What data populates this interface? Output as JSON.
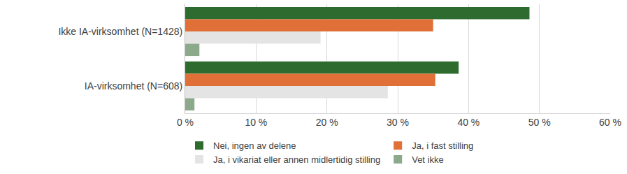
{
  "chart_data": {
    "type": "bar",
    "orientation": "horizontal",
    "categories": [
      "Ikke IA-virksomhet (N=1428)",
      "IA-virksomhet (N=608)"
    ],
    "series": [
      {
        "name": "Nei, ingen av delene",
        "color": "#2E6B2F",
        "values": [
          48.6,
          38.6
        ]
      },
      {
        "name": "Ja, i fast stilling",
        "color": "#E07038",
        "values": [
          35.0,
          35.3
        ]
      },
      {
        "name": "Ja, i vikariat eller annen midlertidig stilling",
        "color": "#E4E4E4",
        "values": [
          19.1,
          28.6
        ]
      },
      {
        "name": "Vet ikke",
        "color": "#8DA98B",
        "values": [
          2.0,
          1.3
        ]
      }
    ],
    "xlim": [
      0,
      60
    ],
    "xticks": [
      {
        "value": 0,
        "label": "0 %"
      },
      {
        "value": 10,
        "label": "10 %"
      },
      {
        "value": 20,
        "label": "20 %"
      },
      {
        "value": 30,
        "label": "30 %"
      },
      {
        "value": 40,
        "label": "40 %"
      },
      {
        "value": 50,
        "label": "50 %"
      },
      {
        "value": 60,
        "label": "60 %"
      }
    ],
    "grid": true,
    "legend": "bottom"
  }
}
